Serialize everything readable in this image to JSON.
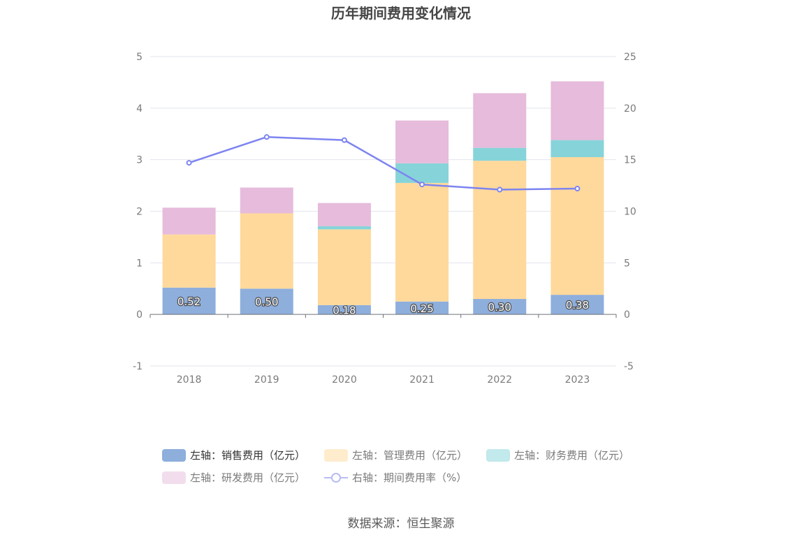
{
  "chart_data": {
    "type": "bar",
    "title": "历年期间费用变化情况",
    "categories": [
      "2018",
      "2019",
      "2020",
      "2021",
      "2022",
      "2023"
    ],
    "left_axis": {
      "min": -1,
      "max": 5,
      "ticks": [
        "-1",
        "0",
        "1",
        "2",
        "3",
        "4",
        "5"
      ]
    },
    "right_axis": {
      "min": -5,
      "max": 25,
      "ticks": [
        "-5",
        "0",
        "5",
        "10",
        "15",
        "20",
        "25"
      ]
    },
    "grid": true,
    "legend_position": "bottom",
    "series": [
      {
        "name": "左轴：销售费用（亿元）",
        "type": "bar",
        "stack": true,
        "axis": "left",
        "color": "#8eaedc",
        "values": [
          0.52,
          0.5,
          0.18,
          0.25,
          0.3,
          0.38
        ],
        "labels": [
          "0.52",
          "0.50",
          "0.18",
          "0.25",
          "0.30",
          "0.38"
        ]
      },
      {
        "name": "左轴：管理费用（亿元）",
        "type": "bar",
        "stack": true,
        "axis": "left",
        "color": "#fed99b",
        "values": [
          1.03,
          1.46,
          1.47,
          2.3,
          2.68,
          2.67
        ]
      },
      {
        "name": "左轴：财务费用（亿元）",
        "type": "bar",
        "stack": true,
        "axis": "left",
        "color": "#86d4d9",
        "values": [
          0.0,
          0.0,
          0.06,
          0.38,
          0.25,
          0.33
        ]
      },
      {
        "name": "左轴：研发费用（亿元）",
        "type": "bar",
        "stack": true,
        "axis": "left",
        "color": "#e6bbdb",
        "values": [
          0.52,
          0.5,
          0.45,
          0.83,
          1.06,
          1.14
        ]
      },
      {
        "name": "右轴：期间费用率（%）",
        "type": "line",
        "axis": "right",
        "color": "#7d84f0",
        "values": [
          14.7,
          17.2,
          16.9,
          12.6,
          12.1,
          12.2
        ]
      }
    ],
    "source": "数据来源：恒生聚源"
  }
}
